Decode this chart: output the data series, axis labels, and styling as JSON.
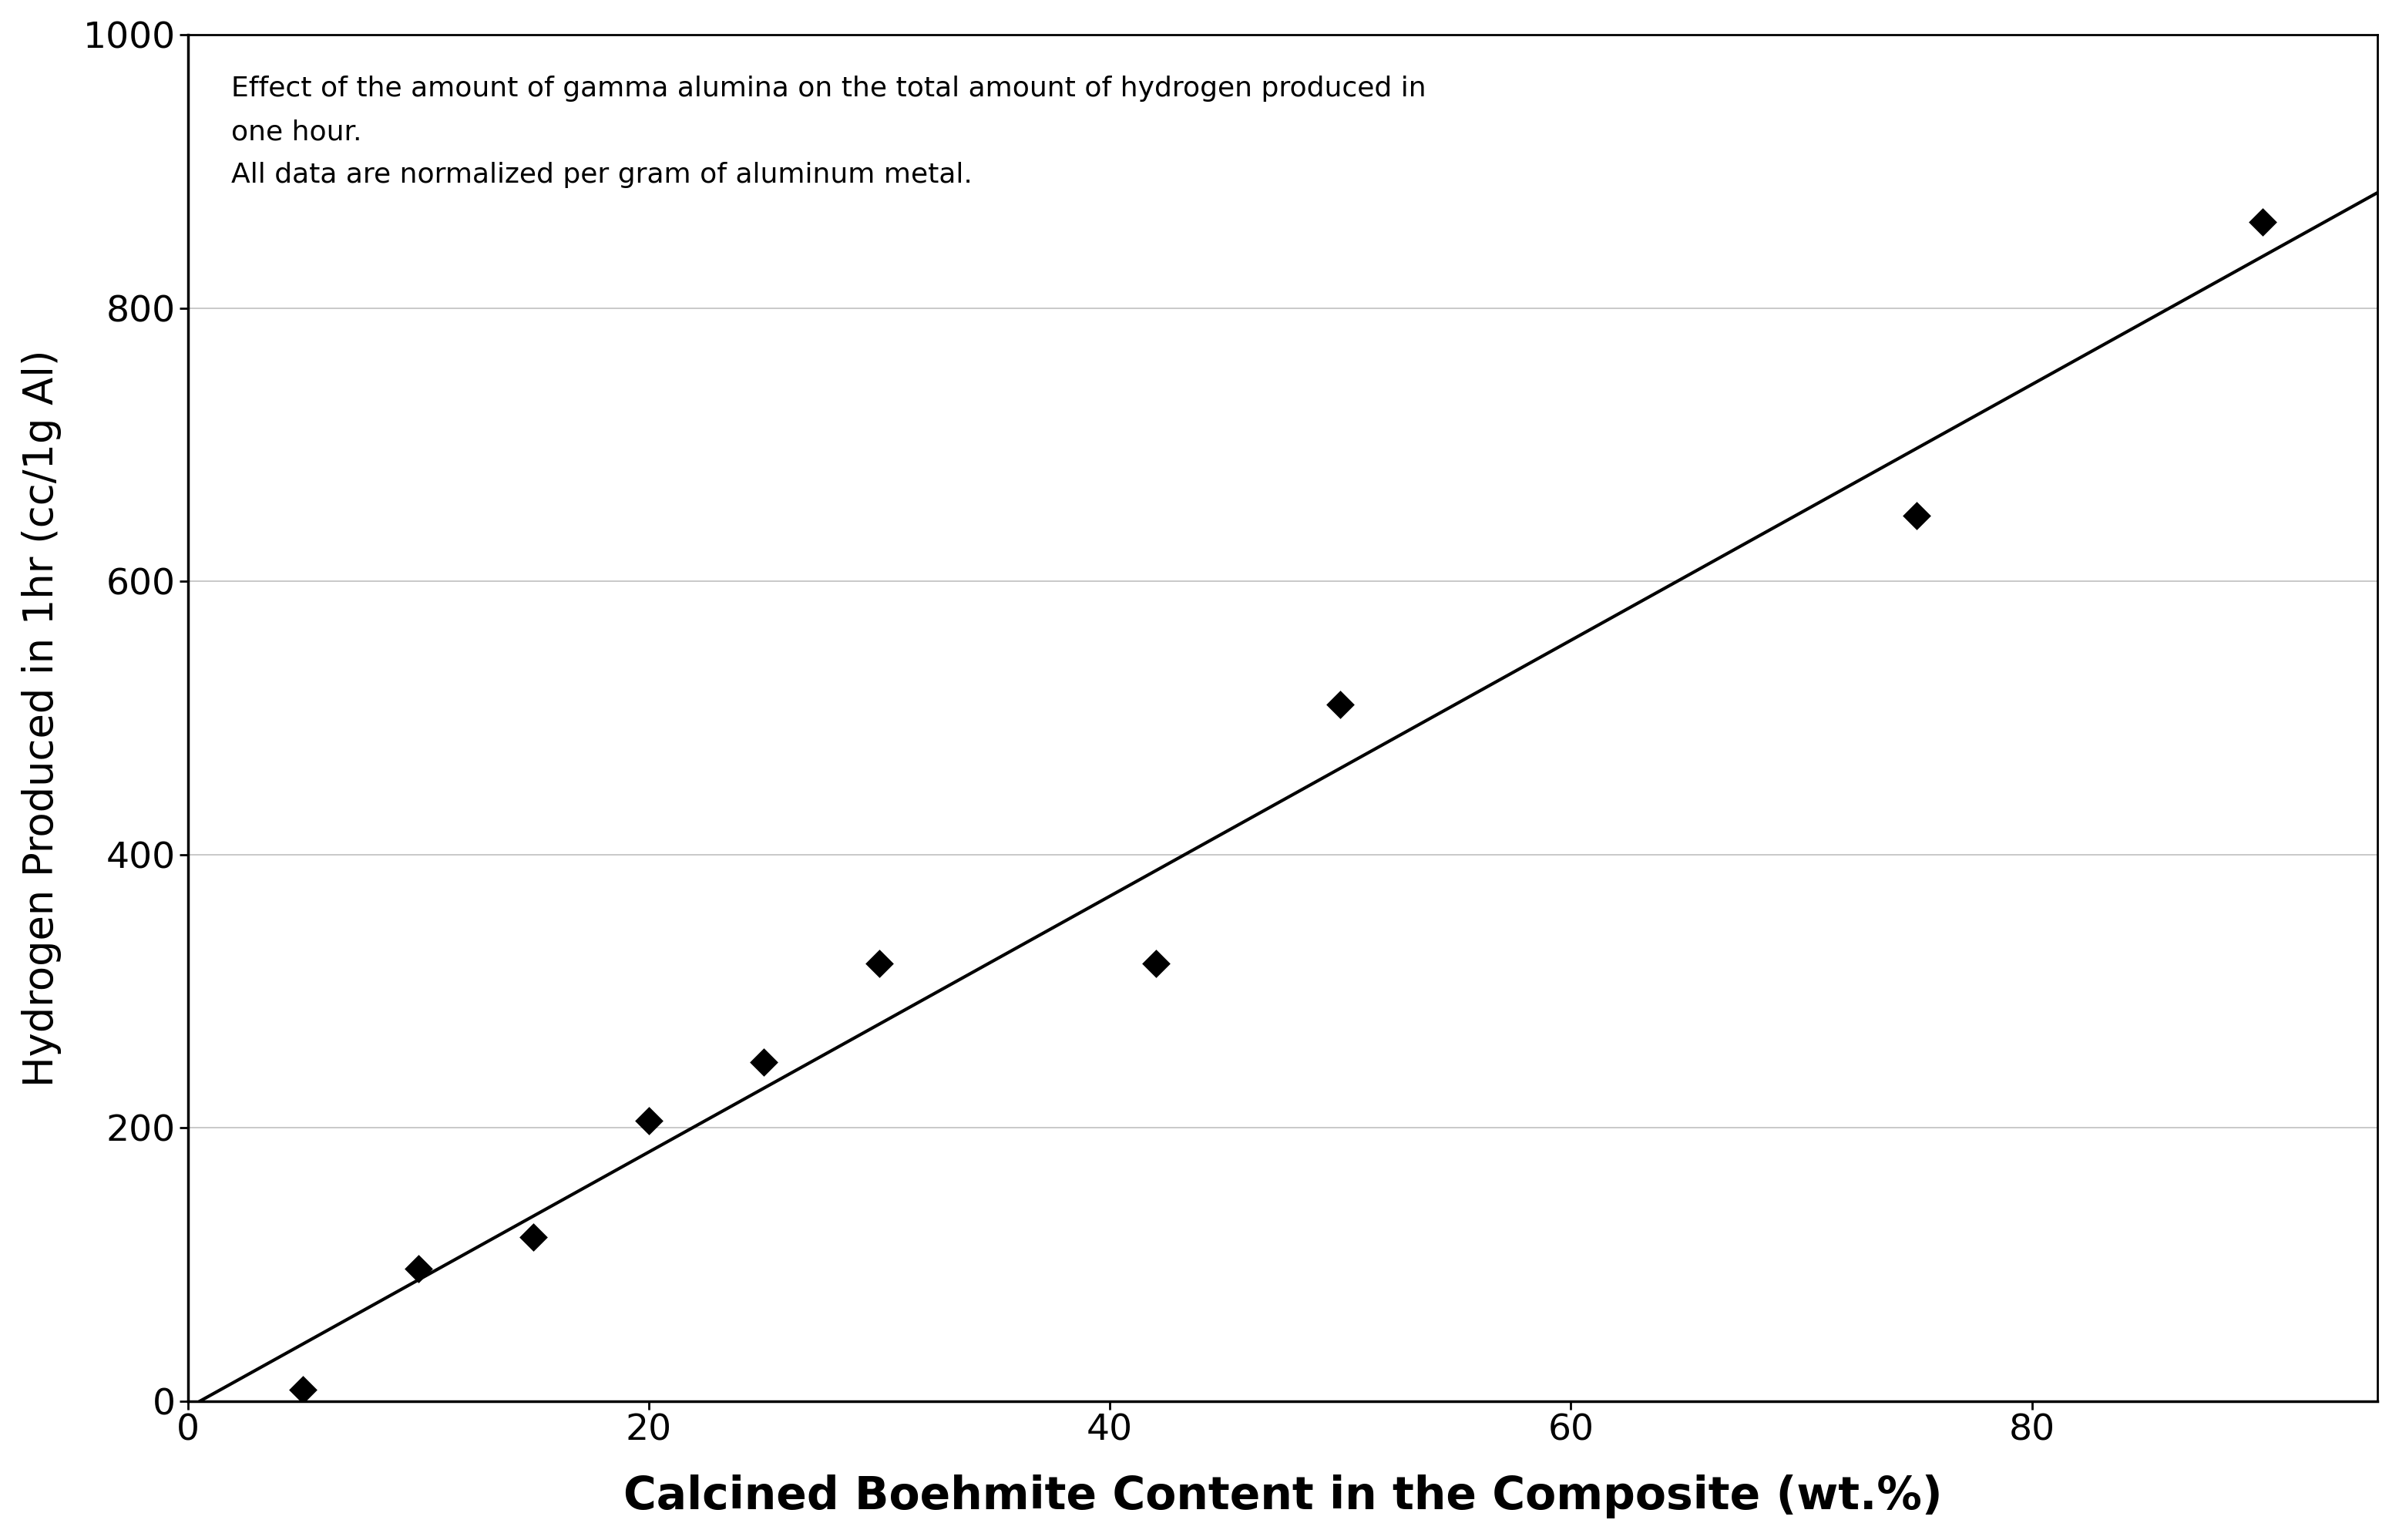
{
  "x_data": [
    5,
    10,
    15,
    20,
    25,
    30,
    42,
    50,
    75,
    90
  ],
  "y_data": [
    8,
    97,
    120,
    205,
    248,
    320,
    320,
    510,
    648,
    863
  ],
  "xlabel": "Calcined Boehmite Content in the Composite (wt.%)",
  "ylabel": "Hydrogen Produced in 1hr (cc/1g Al)",
  "annotation_line1": "Effect of the amount of gamma alumina on the total amount of hydrogen produced in",
  "annotation_line2": "one hour.",
  "annotation_line3": "All data are normalized per gram of aluminum metal.",
  "xlim": [
    0,
    95
  ],
  "ylim": [
    0,
    1000
  ],
  "xticks": [
    0,
    20,
    40,
    60,
    80
  ],
  "yticks": [
    0,
    200,
    400,
    600,
    800,
    1000
  ],
  "background_color": "#ffffff",
  "line_color": "#000000",
  "marker_color": "#000000",
  "grid_color": "#c0c0c0"
}
